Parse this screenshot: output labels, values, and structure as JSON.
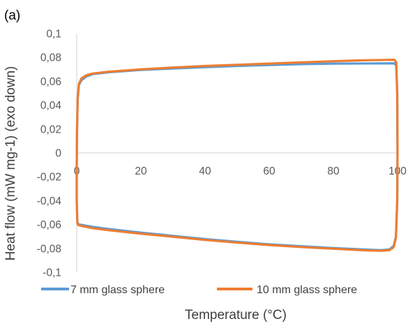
{
  "panel_label": "(a)",
  "chart_data": {
    "type": "line",
    "title": "",
    "xlabel": "Temperature (°C)",
    "ylabel": "Heat flow (mW mg-1) (exo down)",
    "xlim": [
      0,
      100
    ],
    "ylim": [
      -0.1,
      0.1
    ],
    "x_ticks": [
      0,
      20,
      40,
      60,
      80,
      100
    ],
    "y_ticks": [
      0.1,
      0.08,
      0.06,
      0.04,
      0.02,
      0,
      -0.02,
      -0.04,
      -0.06,
      -0.08,
      -0.1
    ],
    "x_tick_labels": [
      "0",
      "20",
      "40",
      "60",
      "80",
      "100"
    ],
    "y_tick_labels": [
      "0,1",
      "0,08",
      "0,06",
      "0,04",
      "0,02",
      "0",
      "-0,02",
      "-0,04",
      "-0,06",
      "-0,08",
      "-0,1"
    ],
    "grid": false,
    "legend_position": "bottom",
    "series": [
      {
        "name": "7 mm glass sphere",
        "color": "#5B9BD5",
        "points": [
          [
            0.0,
            -0.01
          ],
          [
            0.1,
            0.02
          ],
          [
            0.3,
            0.045
          ],
          [
            0.7,
            0.057
          ],
          [
            1.5,
            0.061
          ],
          [
            3,
            0.064
          ],
          [
            5,
            0.066
          ],
          [
            10,
            0.0675
          ],
          [
            20,
            0.0695
          ],
          [
            30,
            0.0707
          ],
          [
            40,
            0.0718
          ],
          [
            50,
            0.0728
          ],
          [
            60,
            0.0736
          ],
          [
            70,
            0.0743
          ],
          [
            80,
            0.0748
          ],
          [
            90,
            0.0749
          ],
          [
            99,
            0.075
          ],
          [
            99.6,
            0.073
          ],
          [
            99.9,
            0.05
          ],
          [
            100,
            0.0
          ],
          [
            99.9,
            -0.04
          ],
          [
            99.5,
            -0.07
          ],
          [
            98.8,
            -0.078
          ],
          [
            97.5,
            -0.0808
          ],
          [
            95,
            -0.0815
          ],
          [
            90,
            -0.081
          ],
          [
            80,
            -0.0797
          ],
          [
            70,
            -0.0782
          ],
          [
            60,
            -0.0766
          ],
          [
            50,
            -0.0745
          ],
          [
            40,
            -0.0722
          ],
          [
            30,
            -0.0695
          ],
          [
            20,
            -0.0668
          ],
          [
            10,
            -0.0638
          ],
          [
            5,
            -0.062
          ],
          [
            2,
            -0.0606
          ],
          [
            0.5,
            -0.0598
          ],
          [
            0.2,
            -0.058
          ],
          [
            0.0,
            -0.04
          ],
          [
            0.0,
            -0.01
          ]
        ]
      },
      {
        "name": "10 mm glass sphere",
        "color": "#ED7D31",
        "points": [
          [
            0.0,
            -0.012
          ],
          [
            0.1,
            0.02
          ],
          [
            0.3,
            0.046
          ],
          [
            0.7,
            0.058
          ],
          [
            1.5,
            0.0625
          ],
          [
            3,
            0.065
          ],
          [
            5,
            0.0665
          ],
          [
            10,
            0.068
          ],
          [
            20,
            0.07
          ],
          [
            30,
            0.0715
          ],
          [
            40,
            0.0728
          ],
          [
            50,
            0.0738
          ],
          [
            60,
            0.0748
          ],
          [
            70,
            0.0758
          ],
          [
            80,
            0.0768
          ],
          [
            90,
            0.0776
          ],
          [
            99,
            0.078
          ],
          [
            99.6,
            0.076
          ],
          [
            99.9,
            0.05
          ],
          [
            100,
            0.0
          ],
          [
            99.9,
            -0.04
          ],
          [
            99.5,
            -0.071
          ],
          [
            98.8,
            -0.079
          ],
          [
            97.5,
            -0.0815
          ],
          [
            95,
            -0.082
          ],
          [
            90,
            -0.0817
          ],
          [
            80,
            -0.0803
          ],
          [
            70,
            -0.0789
          ],
          [
            60,
            -0.0772
          ],
          [
            50,
            -0.0752
          ],
          [
            40,
            -0.0729
          ],
          [
            30,
            -0.0703
          ],
          [
            20,
            -0.0677
          ],
          [
            10,
            -0.0648
          ],
          [
            5,
            -0.0631
          ],
          [
            2,
            -0.0615
          ],
          [
            0.5,
            -0.0605
          ],
          [
            0.2,
            -0.059
          ],
          [
            0.0,
            -0.04
          ],
          [
            0.0,
            -0.012
          ]
        ]
      }
    ]
  }
}
